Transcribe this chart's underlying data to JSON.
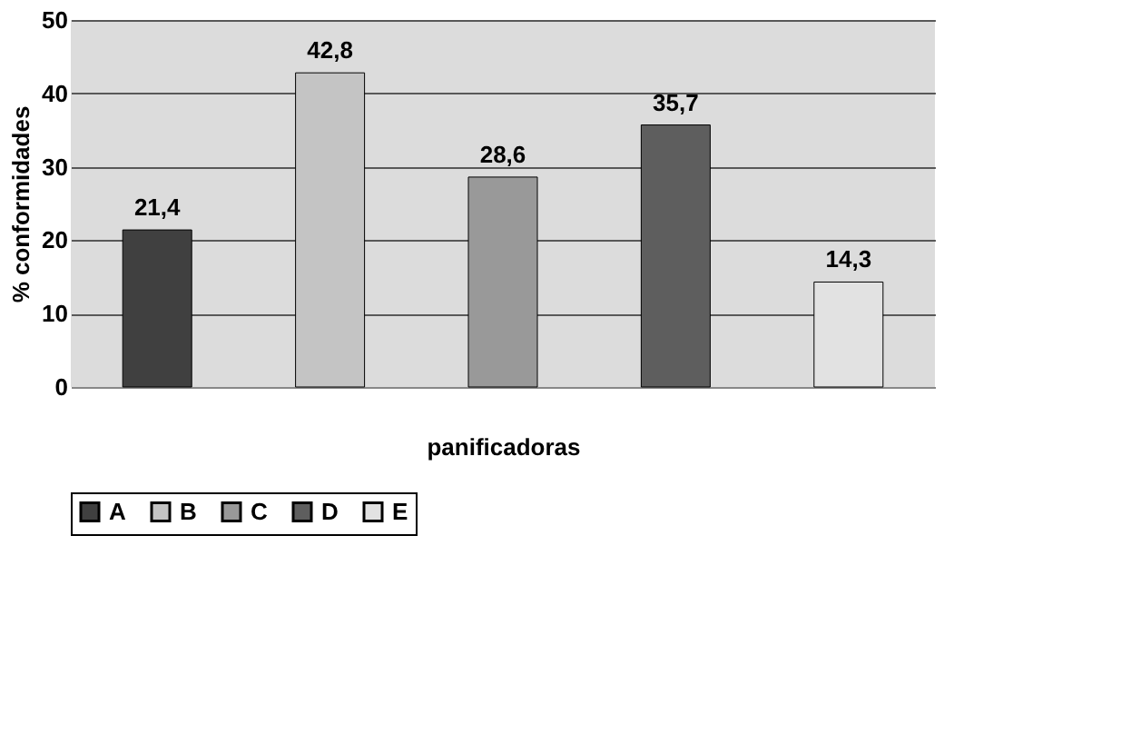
{
  "chart_data": {
    "type": "bar",
    "xlabel": "panificadoras",
    "ylabel": "% conformidades",
    "categories": [
      null,
      null,
      null,
      null,
      null
    ],
    "series": [
      {
        "name": "A",
        "color": "#404040",
        "values": [
          21.4,
          null,
          null,
          null,
          null
        ],
        "value_labels": [
          "21,4",
          null,
          null,
          null,
          null
        ]
      },
      {
        "name": "B",
        "color": "#c4c4c4",
        "values": [
          null,
          42.8,
          null,
          null,
          null
        ],
        "value_labels": [
          null,
          "42,8",
          null,
          null,
          null
        ]
      },
      {
        "name": "C",
        "color": "#999999",
        "values": [
          null,
          null,
          28.6,
          null,
          null
        ],
        "value_labels": [
          null,
          null,
          "28,6",
          null,
          null
        ]
      },
      {
        "name": "D",
        "color": "#5e5e5e",
        "values": [
          null,
          null,
          null,
          35.7,
          null
        ],
        "value_labels": [
          null,
          null,
          null,
          "35,7",
          null
        ]
      },
      {
        "name": "E",
        "color": "#e2e2e2",
        "values": [
          null,
          null,
          null,
          null,
          14.3
        ],
        "value_labels": [
          null,
          null,
          null,
          null,
          "14,3"
        ]
      }
    ],
    "ylim": [
      0,
      50
    ],
    "yticks": [
      0,
      10,
      20,
      30,
      40,
      50
    ],
    "grid": "y",
    "legend": "bottom"
  }
}
